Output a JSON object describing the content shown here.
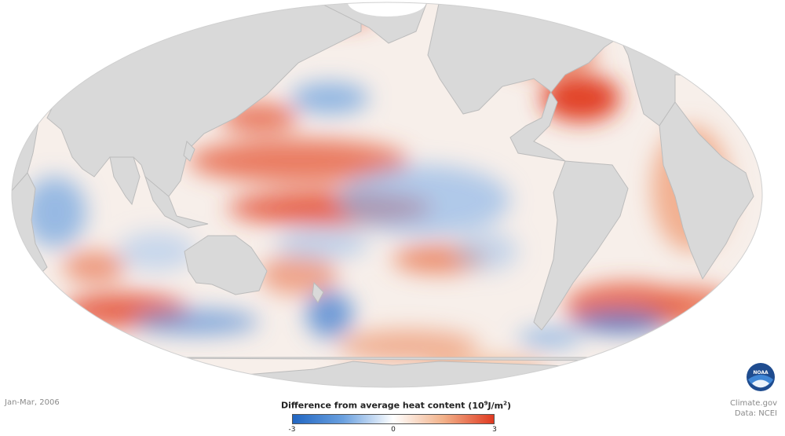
{
  "map": {
    "projection": "mollweide",
    "land_color": "#d9d9d9",
    "ocean_background": "#f7efea"
  },
  "date_label": "Jan-Mar, 2006",
  "legend": {
    "title": "Difference from average heat content",
    "unit_prefix": "(10",
    "unit_sup": "9",
    "unit_mid": "J/m",
    "unit_sup2": "2",
    "unit_suffix": ")",
    "min_label": "-3",
    "mid_label": "0",
    "max_label": "3",
    "range": [
      -3,
      3
    ],
    "colors": [
      "#2166c2",
      "#6aa0df",
      "#ffffff",
      "#f2b189",
      "#e03a21"
    ]
  },
  "credit": {
    "site": "Climate.gov",
    "source": "Data: NCEI"
  },
  "logo": {
    "text": "NOAA",
    "icon": "noaa-logo-icon"
  }
}
